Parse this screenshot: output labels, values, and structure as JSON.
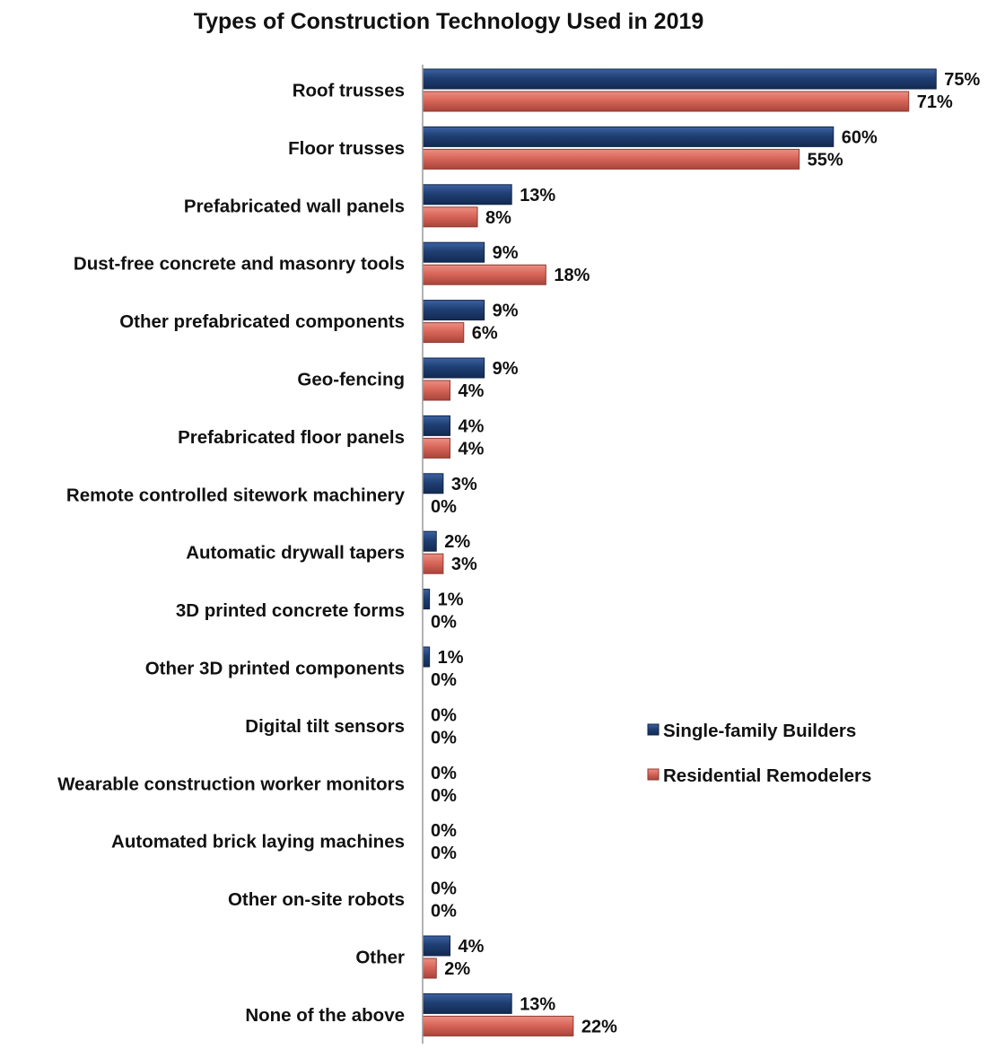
{
  "chart_data": {
    "type": "bar",
    "orientation": "horizontal",
    "title": "Types of Construction Technology Used in 2019",
    "xlabel": "",
    "ylabel": "",
    "xlim": [
      0,
      80
    ],
    "grid": false,
    "legend_position": "right",
    "categories": [
      "Roof trusses",
      "Floor trusses",
      "Prefabricated wall panels",
      "Dust-free concrete and masonry tools",
      "Other prefabricated components",
      "Geo-fencing",
      "Prefabricated floor panels",
      "Remote controlled sitework machinery",
      "Automatic drywall tapers",
      "3D printed concrete forms",
      "Other 3D printed components",
      "Digital tilt sensors",
      "Wearable construction worker monitors",
      "Automated brick laying machines",
      "Other on-site robots",
      "Other",
      "None of the above"
    ],
    "series": [
      {
        "name": "Single-family Builders",
        "color": "#1f3f73",
        "values": [
          75,
          60,
          13,
          9,
          9,
          9,
          4,
          3,
          2,
          1,
          1,
          0,
          0,
          0,
          0,
          4,
          13
        ]
      },
      {
        "name": "Residential Remodelers",
        "color": "#d9665a",
        "values": [
          71,
          55,
          8,
          18,
          6,
          4,
          4,
          0,
          3,
          0,
          0,
          0,
          0,
          0,
          0,
          2,
          22
        ]
      }
    ],
    "value_suffix": "%"
  }
}
